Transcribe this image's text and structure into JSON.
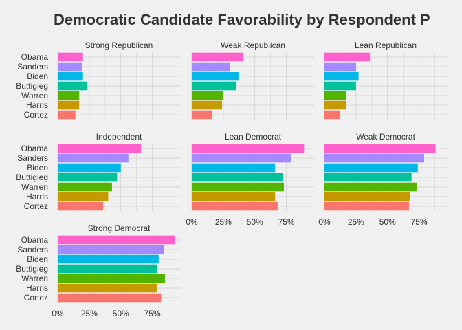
{
  "chart_data": {
    "type": "bar",
    "orientation": "horizontal",
    "title": "Democratic Candidate Favorability by Respondent P",
    "categories": [
      "Obama",
      "Sanders",
      "Biden",
      "Buttigieg",
      "Warren",
      "Harris",
      "Cortez"
    ],
    "colors": {
      "Obama": "#FF61CC",
      "Sanders": "#A58AFF",
      "Biden": "#00B8E7",
      "Buttigieg": "#00C19A",
      "Warren": "#53B400",
      "Harris": "#C49A00",
      "Cortez": "#F8766D"
    },
    "x_ticks": [
      "0%",
      "25%",
      "50%",
      "75%"
    ],
    "x_tick_values": [
      0,
      0.25,
      0.5,
      0.75
    ],
    "xlim": [
      0,
      0.97
    ],
    "grid": true,
    "facets": [
      {
        "label": "Strong Republican",
        "values": [
          0.2,
          0.19,
          0.2,
          0.23,
          0.17,
          0.17,
          0.14
        ]
      },
      {
        "label": "Weak Republican",
        "values": [
          0.41,
          0.3,
          0.37,
          0.35,
          0.25,
          0.24,
          0.16
        ]
      },
      {
        "label": "Lean Republican",
        "values": [
          0.36,
          0.25,
          0.27,
          0.25,
          0.17,
          0.17,
          0.12
        ]
      },
      {
        "label": "Independent",
        "values": [
          0.66,
          0.56,
          0.5,
          0.47,
          0.43,
          0.4,
          0.36
        ]
      },
      {
        "label": "Lean Democrat",
        "values": [
          0.89,
          0.79,
          0.66,
          0.72,
          0.73,
          0.66,
          0.68
        ]
      },
      {
        "label": "Weak Democrat",
        "values": [
          0.88,
          0.79,
          0.74,
          0.69,
          0.73,
          0.68,
          0.67
        ]
      },
      {
        "label": "Strong Democrat",
        "values": [
          0.93,
          0.84,
          0.8,
          0.79,
          0.85,
          0.79,
          0.82
        ]
      }
    ]
  }
}
